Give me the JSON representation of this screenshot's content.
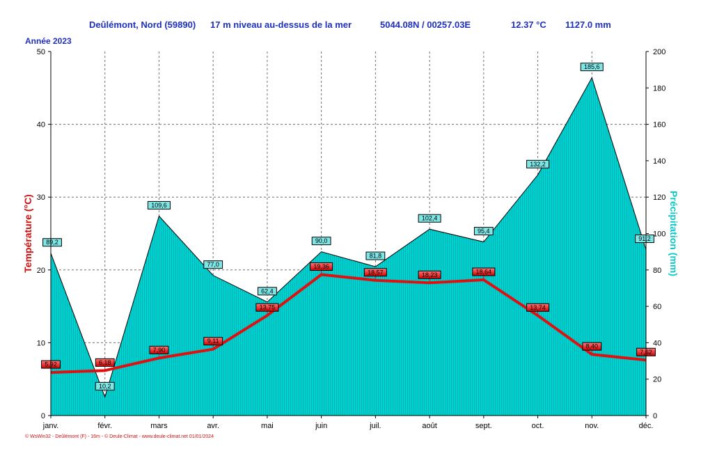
{
  "header": {
    "station": "Deûlémont, Nord (59890)",
    "altitude": "17 m niveau au-dessus de la mer",
    "coords": "5044.08N / 00257.03E",
    "mean_temp": "12.37 °C",
    "total_precip": "1127.0 mm"
  },
  "year_label": "Année  2023",
  "footer": "© WsWin32 - Deûlémont (F) - 16m - © Deule-Climat - www.deule-climat.net  01/01/2024",
  "colors": {
    "temperature": "#e01010",
    "precip_fill": "#00d2d2",
    "precip_stroke": "#000000",
    "header": "#1f2fbf"
  },
  "chart_data": {
    "type": "area",
    "categories": [
      "janv.",
      "févr.",
      "mars",
      "avr.",
      "mai",
      "juin",
      "juil.",
      "août",
      "sept.",
      "oct.",
      "nov.",
      "déc."
    ],
    "series": [
      {
        "axis": "left",
        "kind": "line",
        "values": [
          5.92,
          6.18,
          7.9,
          9.11,
          13.75,
          19.36,
          18.57,
          18.23,
          18.64,
          13.74,
          8.4,
          7.62
        ],
        "labels": [
          "5,92",
          "6,18",
          "7,90",
          "9,11",
          "13,75",
          "19,36",
          "18,57",
          "18,23",
          "18,64",
          "13,74",
          "8,40",
          "7,62"
        ]
      },
      {
        "axis": "right",
        "kind": "area",
        "values": [
          89.2,
          10.2,
          109.6,
          77.0,
          62.4,
          90.0,
          81.8,
          102.4,
          95.4,
          132.2,
          185.6,
          91.2
        ],
        "labels": [
          "89,2",
          "10,2",
          "109,6",
          "77,0",
          "62,4",
          "90,0",
          "81,8",
          "102,4",
          "95,4",
          "132,2",
          "185,6",
          "91,2"
        ]
      }
    ],
    "ylabel_left": "Température  (°C)",
    "ylabel_right": "Précipitation  (mm)",
    "ylim_left": [
      0,
      50
    ],
    "yticks_left": [
      "0",
      "10",
      "20",
      "30",
      "40",
      "50"
    ],
    "ylim_right": [
      0,
      200
    ],
    "yticks_right": [
      "0",
      "20",
      "40",
      "60",
      "80",
      "100",
      "120",
      "140",
      "160",
      "180",
      "200"
    ],
    "grid": true
  }
}
